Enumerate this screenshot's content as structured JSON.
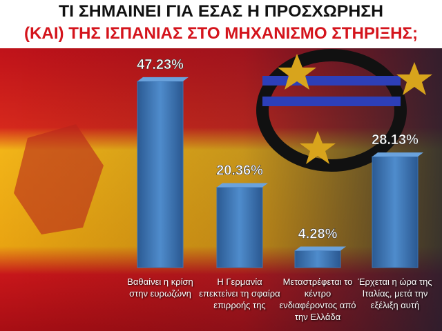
{
  "chart_data": {
    "type": "bar",
    "title": "ΤΙ ΣΗΜΑΙΝΕΙ ΓΙΑ ΕΣΑΣ Η ΠΡΟΣΧΩΡΗΣΗ",
    "subtitle": "(ΚΑΙ) ΤΗΣ ΙΣΠΑΝΙΑΣ ΣΤΟ ΜΗΧΑΝΙΣΜΟ ΣΤΗΡΙΞΗΣ;",
    "categories": [
      "Βαθαίνει η κρίση στην ευρωζώνη",
      "Η Γερμανία επεκτείνει τη σφαίρα επιρροής της",
      "Μεταστρέφεται το κέντρο ενδιαφέροντος από την Ελλάδα",
      "Έρχεται η ώρα της Ιταλίας, μετά την εξέλιξη αυτή"
    ],
    "values": [
      47.23,
      20.36,
      4.28,
      28.13
    ],
    "value_labels": [
      "47.23%",
      "20.36%",
      "4.28%",
      "28.13%"
    ],
    "color": "#3d74b3"
  }
}
